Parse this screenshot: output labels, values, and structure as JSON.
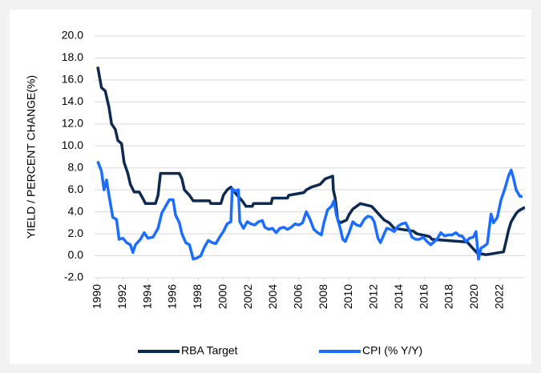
{
  "chart_data": {
    "type": "line",
    "ylabel": "YIELD / PERCENT CHANGE(%)",
    "xlim": [
      1989.75,
      2024
    ],
    "xticks": [
      1990,
      1992,
      1994,
      1996,
      1998,
      2000,
      2002,
      2004,
      2006,
      2008,
      2010,
      2012,
      2014,
      2016,
      2018,
      2020,
      2022
    ],
    "ylim": [
      -2,
      20
    ],
    "yticks": [
      {
        "value": -2,
        "label": "-2.0"
      },
      {
        "value": 0,
        "label": "0.0"
      },
      {
        "value": 2,
        "label": "2.0"
      },
      {
        "value": 4,
        "label": "4.0"
      },
      {
        "value": 6,
        "label": "6.0"
      },
      {
        "value": 8,
        "label": "8.0"
      },
      {
        "value": 10,
        "label": "10.0"
      },
      {
        "value": 12,
        "label": "12.0"
      },
      {
        "value": 14,
        "label": "14.0"
      },
      {
        "value": 16,
        "label": "16.0"
      },
      {
        "value": 18,
        "label": "18.0"
      },
      {
        "value": 20,
        "label": "20.0"
      }
    ],
    "grid": true,
    "legend": "bottom",
    "series": [
      {
        "name": "RBA Target",
        "color": "#0d2a50",
        "x": [
          1990.0,
          1990.3,
          1990.6,
          1990.9,
          1991.1,
          1991.4,
          1991.6,
          1991.9,
          1992.1,
          1992.4,
          1992.6,
          1992.9,
          1993.3,
          1993.6,
          1993.8,
          1994.6,
          1994.8,
          1994.9,
          1995.0,
          1996.5,
          1996.7,
          1996.9,
          1997.3,
          1997.6,
          1998.9,
          1999.0,
          1999.8,
          2000.0,
          2000.3,
          2000.6,
          2001.1,
          2001.5,
          2001.8,
          2002.3,
          2002.4,
          2003.8,
          2003.9,
          2005.1,
          2005.2,
          2006.4,
          2006.6,
          2007.0,
          2007.7,
          2008.1,
          2008.7,
          2008.75,
          2008.9,
          2009.0,
          2009.1,
          2009.3,
          2009.8,
          2010.0,
          2010.3,
          2010.9,
          2011.8,
          2012.0,
          2012.4,
          2012.8,
          2013.2,
          2013.4,
          2013.6,
          2015.1,
          2015.4,
          2016.4,
          2016.6,
          2019.4,
          2019.6,
          2019.8,
          2020.2,
          2020.9,
          2022.3,
          2022.5,
          2022.7,
          2022.9,
          2023.3,
          2023.5,
          2023.9,
          2024.0
        ],
        "values": [
          17.2,
          15.3,
          15.0,
          13.5,
          12.0,
          11.5,
          10.5,
          10.2,
          8.5,
          7.5,
          6.5,
          5.8,
          5.8,
          5.2,
          4.75,
          4.75,
          5.5,
          6.5,
          7.5,
          7.5,
          7.0,
          6.0,
          5.5,
          5.0,
          5.0,
          4.75,
          4.75,
          5.5,
          6.0,
          6.25,
          5.5,
          5.0,
          4.5,
          4.5,
          4.75,
          4.75,
          5.25,
          5.25,
          5.5,
          5.75,
          6.0,
          6.25,
          6.5,
          7.0,
          7.25,
          6.0,
          5.25,
          4.25,
          3.25,
          3.0,
          3.25,
          3.75,
          4.25,
          4.75,
          4.5,
          4.25,
          3.75,
          3.25,
          3.0,
          2.75,
          2.5,
          2.25,
          2.0,
          1.75,
          1.5,
          1.25,
          1.0,
          0.75,
          0.25,
          0.1,
          0.35,
          1.35,
          2.35,
          3.1,
          3.85,
          4.1,
          4.35,
          4.35
        ]
      },
      {
        "name": "CPI (% Y/Y)",
        "color": "#1a6dff",
        "x": [
          1990.0,
          1990.3,
          1990.5,
          1990.7,
          1990.9,
          1991.2,
          1991.5,
          1991.7,
          1992.0,
          1992.3,
          1992.6,
          1992.8,
          1993.0,
          1993.4,
          1993.7,
          1994.0,
          1994.4,
          1994.8,
          1995.1,
          1995.4,
          1995.7,
          1996.0,
          1996.2,
          1996.5,
          1996.7,
          1997.0,
          1997.3,
          1997.6,
          1997.9,
          1998.2,
          1998.5,
          1998.8,
          1999.1,
          1999.4,
          1999.7,
          2000.0,
          2000.3,
          2000.6,
          2000.7,
          2000.9,
          2001.2,
          2001.3,
          2001.6,
          2001.9,
          2002.2,
          2002.5,
          2002.8,
          2003.1,
          2003.3,
          2003.6,
          2003.9,
          2004.2,
          2004.5,
          2004.8,
          2005.1,
          2005.4,
          2005.7,
          2006.0,
          2006.3,
          2006.6,
          2006.9,
          2007.2,
          2007.5,
          2007.8,
          2008.0,
          2008.3,
          2008.6,
          2008.8,
          2009.0,
          2009.3,
          2009.5,
          2009.7,
          2010.0,
          2010.3,
          2010.6,
          2010.9,
          2011.2,
          2011.5,
          2011.8,
          2012.0,
          2012.3,
          2012.5,
          2012.8,
          2013.0,
          2013.3,
          2013.6,
          2013.9,
          2014.2,
          2014.5,
          2014.8,
          2015.0,
          2015.3,
          2015.6,
          2015.9,
          2016.2,
          2016.5,
          2016.8,
          2017.0,
          2017.3,
          2017.6,
          2017.9,
          2018.2,
          2018.5,
          2018.8,
          2019.0,
          2019.3,
          2019.6,
          2019.9,
          2020.1,
          2020.3,
          2020.5,
          2020.8,
          2021.0,
          2021.3,
          2021.5,
          2021.8,
          2022.1,
          2022.4,
          2022.7,
          2022.9,
          2023.1,
          2023.3,
          2023.6,
          2023.8
        ],
        "values": [
          8.6,
          7.7,
          6.0,
          6.9,
          5.5,
          3.5,
          3.3,
          1.5,
          1.6,
          1.2,
          1.0,
          0.3,
          1.0,
          1.5,
          2.1,
          1.6,
          1.7,
          2.5,
          3.9,
          4.5,
          5.1,
          5.1,
          3.7,
          3.0,
          2.0,
          1.2,
          1.0,
          -0.3,
          -0.2,
          0.0,
          0.8,
          1.4,
          1.2,
          1.1,
          1.7,
          2.2,
          2.9,
          3.1,
          6.1,
          5.9,
          6.0,
          3.1,
          2.5,
          3.1,
          2.9,
          2.8,
          3.1,
          3.2,
          2.6,
          2.4,
          2.5,
          2.1,
          2.5,
          2.6,
          2.4,
          2.6,
          2.9,
          2.8,
          3.0,
          4.0,
          3.3,
          2.4,
          2.1,
          1.9,
          3.0,
          4.2,
          4.5,
          5.0,
          3.7,
          2.5,
          1.5,
          1.3,
          2.1,
          3.1,
          2.8,
          2.7,
          3.3,
          3.6,
          3.5,
          3.1,
          1.6,
          1.2,
          2.0,
          2.5,
          2.4,
          2.2,
          2.7,
          2.9,
          3.0,
          2.3,
          1.7,
          1.5,
          1.5,
          1.7,
          1.3,
          1.0,
          1.3,
          1.5,
          2.1,
          1.8,
          1.9,
          1.9,
          2.1,
          1.8,
          1.8,
          1.3,
          1.6,
          1.7,
          2.2,
          -0.3,
          0.7,
          0.9,
          1.1,
          3.8,
          3.0,
          3.5,
          5.1,
          6.1,
          7.3,
          7.8,
          7.0,
          6.0,
          5.4,
          5.4
        ]
      }
    ]
  }
}
